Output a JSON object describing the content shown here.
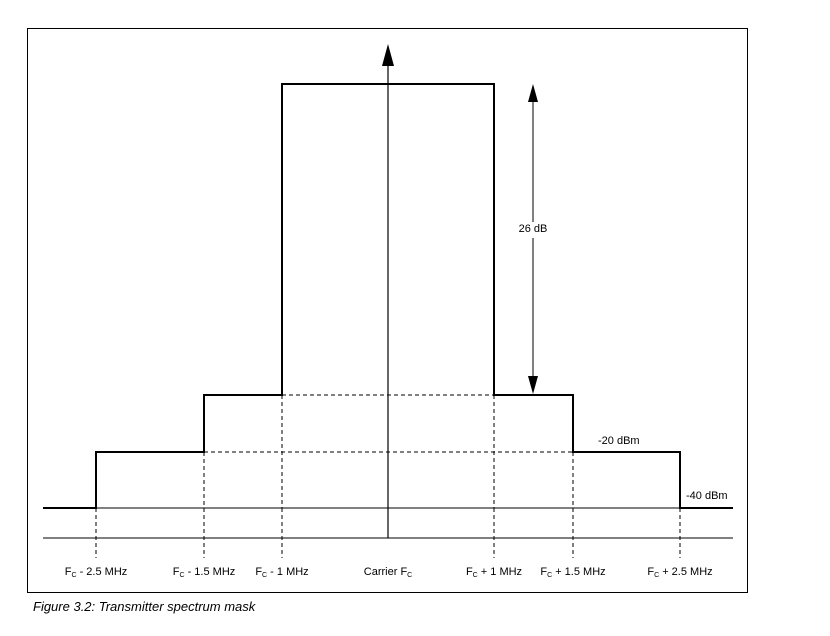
{
  "caption": "Figure 3.2:  Transmitter spectrum mask",
  "dimension_label": "26 dB",
  "levels": {
    "minus20": "-20 dBm",
    "minus40": "-40 dBm"
  },
  "freq_labels": [
    {
      "prefix": "F",
      "sub": "C",
      "suffix": " - 2.5 MHz"
    },
    {
      "prefix": "F",
      "sub": "C",
      "suffix": " - 1.5 MHz"
    },
    {
      "prefix": "F",
      "sub": "C",
      "suffix": " - 1 MHz"
    },
    {
      "prefix": "Carrier F",
      "sub": "C",
      "suffix": ""
    },
    {
      "prefix": "F",
      "sub": "C",
      "suffix": " + 1 MHz"
    },
    {
      "prefix": "F",
      "sub": "C",
      "suffix": " + 1.5 MHz"
    },
    {
      "prefix": "F",
      "sub": "C",
      "suffix": " + 2.5 MHz"
    }
  ]
}
